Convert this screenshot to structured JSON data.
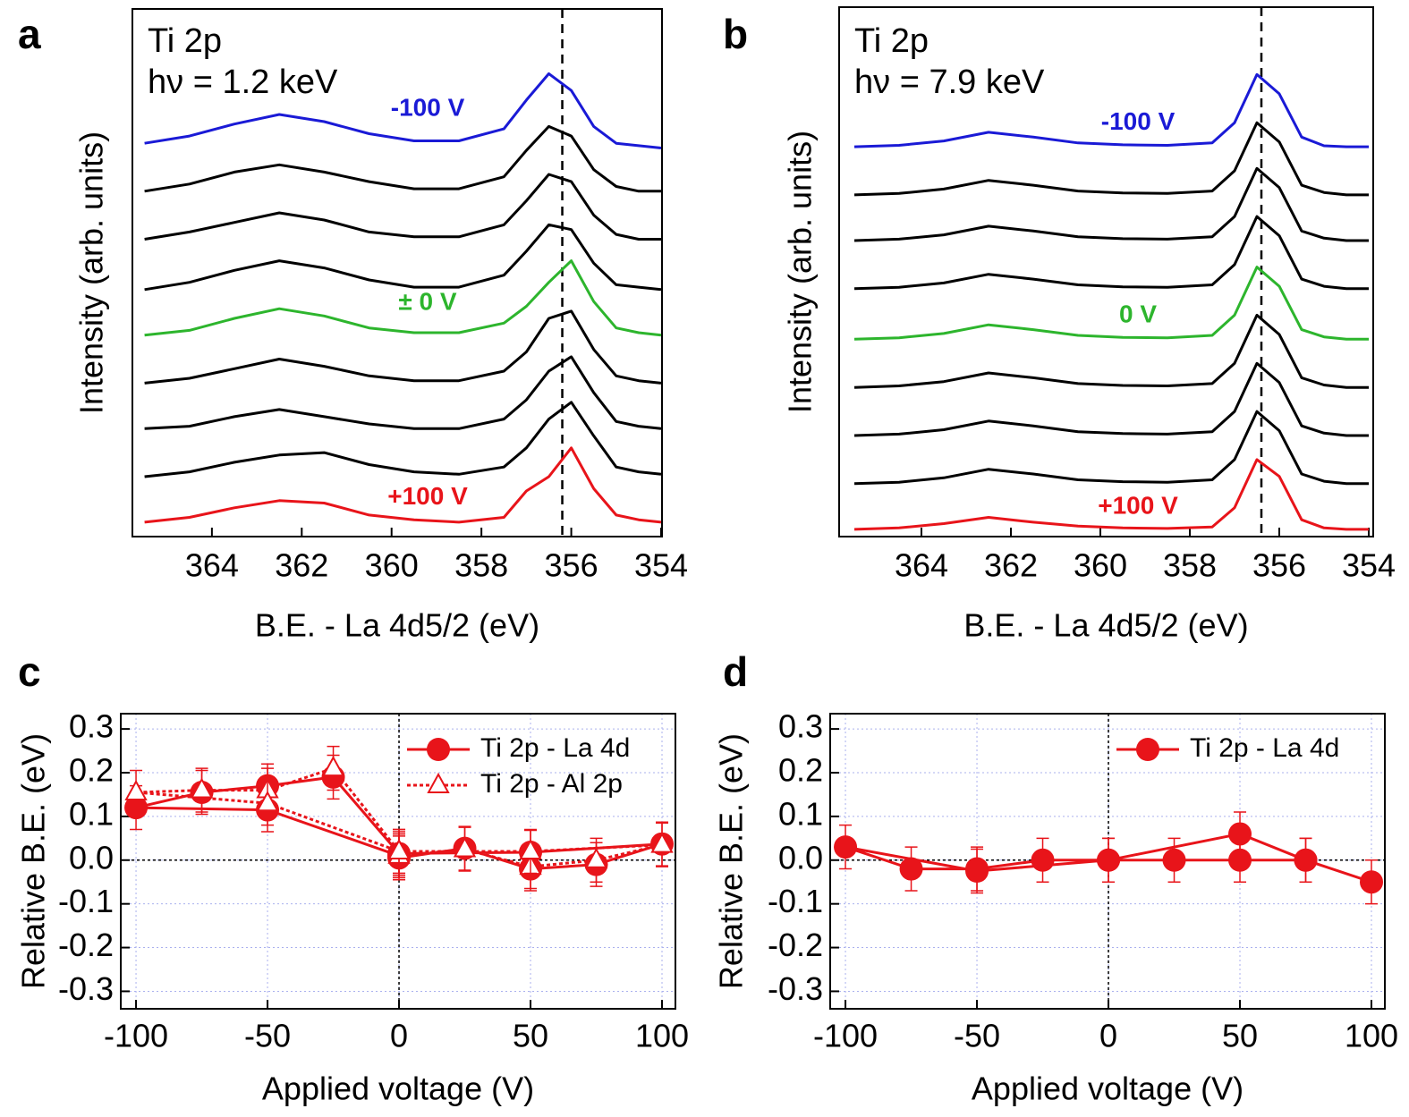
{
  "chart_data": [
    {
      "type": "line",
      "panel_label": "a",
      "annotations": [
        "Ti 2p",
        "hν = 1.2 keV"
      ],
      "xlabel": "B.E. - La 4d5/2 (eV)",
      "ylabel": "Intensity (arb. units)",
      "x": [
        365.5,
        364.5,
        363.5,
        362.5,
        361.5,
        360.5,
        359.5,
        358.5,
        357.5,
        357,
        356.5,
        356,
        355.5,
        355,
        354.5,
        354
      ],
      "xlim": [
        365.77,
        353.98
      ],
      "xticks": [
        364,
        362,
        360,
        358,
        356,
        354
      ],
      "ylim": [
        0,
        11
      ],
      "reference_x": 356.2,
      "series": [
        {
          "name": "-100 V",
          "color": "#1a1ad6",
          "values": [
            8.2,
            8.35,
            8.6,
            8.8,
            8.65,
            8.4,
            8.25,
            8.25,
            8.5,
            9.1,
            9.65,
            9.3,
            8.55,
            8.2,
            8.15,
            8.1
          ]
        },
        {
          "color": "#000000",
          "values": [
            7.2,
            7.35,
            7.6,
            7.75,
            7.6,
            7.4,
            7.25,
            7.25,
            7.5,
            8.05,
            8.55,
            8.35,
            7.65,
            7.3,
            7.2,
            7.2
          ]
        },
        {
          "color": "#000000",
          "values": [
            6.2,
            6.35,
            6.55,
            6.75,
            6.6,
            6.35,
            6.25,
            6.25,
            6.5,
            7.0,
            7.55,
            7.4,
            6.7,
            6.3,
            6.2,
            6.2
          ]
        },
        {
          "color": "#000000",
          "values": [
            5.15,
            5.3,
            5.55,
            5.75,
            5.6,
            5.35,
            5.2,
            5.2,
            5.45,
            5.95,
            6.5,
            6.4,
            5.7,
            5.25,
            5.2,
            5.15
          ]
        },
        {
          "name": "± 0 V",
          "color": "#2db52d",
          "values": [
            4.2,
            4.3,
            4.55,
            4.75,
            4.6,
            4.35,
            4.25,
            4.25,
            4.45,
            4.8,
            5.3,
            5.75,
            4.9,
            4.35,
            4.25,
            4.2
          ]
        },
        {
          "color": "#000000",
          "values": [
            3.2,
            3.3,
            3.5,
            3.7,
            3.55,
            3.35,
            3.25,
            3.25,
            3.45,
            3.85,
            4.55,
            4.7,
            3.9,
            3.35,
            3.25,
            3.2
          ]
        },
        {
          "color": "#000000",
          "values": [
            2.25,
            2.3,
            2.5,
            2.65,
            2.5,
            2.35,
            2.25,
            2.25,
            2.45,
            2.85,
            3.45,
            3.75,
            3.0,
            2.4,
            2.3,
            2.25
          ]
        },
        {
          "color": "#000000",
          "values": [
            1.25,
            1.35,
            1.55,
            1.7,
            1.75,
            1.5,
            1.35,
            1.3,
            1.45,
            1.85,
            2.45,
            2.8,
            2.1,
            1.45,
            1.35,
            1.3
          ]
        },
        {
          "name": "+100 V",
          "color": "#e8141a",
          "values": [
            0.3,
            0.4,
            0.6,
            0.75,
            0.7,
            0.45,
            0.35,
            0.3,
            0.4,
            0.95,
            1.25,
            1.85,
            1.0,
            0.45,
            0.35,
            0.3
          ]
        }
      ]
    },
    {
      "type": "line",
      "panel_label": "b",
      "annotations": [
        "Ti 2p",
        "hν = 7.9 keV"
      ],
      "xlabel": "B.E. - La 4d5/2 (eV)",
      "ylabel": "Intensity (arb. units)",
      "x": [
        365.5,
        364.5,
        363.5,
        362.5,
        361.5,
        360.5,
        359.5,
        358.5,
        357.5,
        357,
        356.5,
        356,
        355.5,
        355,
        354.5,
        354
      ],
      "xlim": [
        365.84,
        353.9
      ],
      "xticks": [
        364,
        362,
        360,
        358,
        356,
        354
      ],
      "ylim": [
        0,
        11
      ],
      "reference_x": 356.4,
      "series": [
        {
          "name": "-100 V",
          "color": "#1a1ad6",
          "values": [
            8.1,
            8.13,
            8.22,
            8.4,
            8.3,
            8.18,
            8.14,
            8.13,
            8.18,
            8.6,
            9.6,
            9.2,
            8.3,
            8.12,
            8.1,
            8.1
          ]
        },
        {
          "color": "#000000",
          "values": [
            7.1,
            7.13,
            7.22,
            7.4,
            7.3,
            7.18,
            7.14,
            7.13,
            7.18,
            7.6,
            8.6,
            8.2,
            7.3,
            7.15,
            7.1,
            7.1
          ]
        },
        {
          "color": "#000000",
          "values": [
            6.15,
            6.18,
            6.27,
            6.45,
            6.35,
            6.23,
            6.19,
            6.18,
            6.23,
            6.65,
            7.65,
            7.25,
            6.35,
            6.2,
            6.15,
            6.15
          ]
        },
        {
          "color": "#000000",
          "values": [
            5.15,
            5.18,
            5.27,
            5.45,
            5.35,
            5.23,
            5.19,
            5.18,
            5.23,
            5.65,
            6.65,
            6.25,
            5.35,
            5.2,
            5.15,
            5.15
          ]
        },
        {
          "name": "0 V",
          "color": "#2db52d",
          "values": [
            4.1,
            4.13,
            4.22,
            4.4,
            4.3,
            4.18,
            4.14,
            4.13,
            4.18,
            4.6,
            5.6,
            5.2,
            4.3,
            4.15,
            4.1,
            4.1
          ]
        },
        {
          "color": "#000000",
          "values": [
            3.1,
            3.13,
            3.22,
            3.4,
            3.3,
            3.18,
            3.14,
            3.13,
            3.18,
            3.6,
            4.6,
            4.2,
            3.3,
            3.15,
            3.1,
            3.1
          ]
        },
        {
          "color": "#000000",
          "values": [
            2.1,
            2.13,
            2.22,
            2.4,
            2.3,
            2.18,
            2.14,
            2.13,
            2.18,
            2.6,
            3.6,
            3.2,
            2.3,
            2.15,
            2.1,
            2.1
          ]
        },
        {
          "color": "#000000",
          "values": [
            1.1,
            1.13,
            1.22,
            1.4,
            1.3,
            1.18,
            1.14,
            1.13,
            1.18,
            1.6,
            2.6,
            2.2,
            1.3,
            1.15,
            1.1,
            1.1
          ]
        },
        {
          "name": "+100 V",
          "color": "#e8141a",
          "values": [
            0.15,
            0.18,
            0.27,
            0.4,
            0.3,
            0.22,
            0.18,
            0.17,
            0.2,
            0.6,
            1.6,
            1.25,
            0.35,
            0.18,
            0.15,
            0.15
          ]
        }
      ]
    },
    {
      "type": "errorbar",
      "panel_label": "c",
      "xlabel": "Applied voltage (V)",
      "ylabel": "Relative B.E. (eV)",
      "x": [
        0,
        25,
        50,
        75,
        100,
        50,
        0,
        -25,
        -50,
        -75,
        -100,
        -50,
        0
      ],
      "xlim": [
        -105.8,
        105.1
      ],
      "xticks": [
        -100,
        -50,
        0,
        50,
        100
      ],
      "ylim": [
        -0.34,
        0.335
      ],
      "yticks": [
        0.3,
        0.2,
        0.1,
        {
          "value": 0,
          "label": "0.0"
        },
        -0.1,
        -0.2,
        -0.3
      ],
      "grid": true,
      "reference_x": 0,
      "reference_y": 0,
      "legend": "upper right",
      "series": [
        {
          "name": "Ti 2p - La 4d",
          "color": "#e8141a",
          "marker": "circle",
          "linestyle": "solid",
          "values": [
            0.005,
            0.027,
            -0.02,
            -0.01,
            0.037,
            0.018,
            0.015,
            0.19,
            0.17,
            0.155,
            0.12,
            0.115,
            0.01
          ],
          "errors": [
            0.05,
            0.05,
            0.05,
            0.05,
            0.05,
            0.05,
            0.05,
            0.05,
            0.05,
            0.05,
            0.05,
            0.05,
            0.05
          ]
        },
        {
          "name": "Ti 2p - Al 2p",
          "color": "#e8141a",
          "marker": "triangle",
          "linestyle": "dotted",
          "values": [
            0.01,
            0.025,
            -0.015,
            0.0,
            0.035,
            0.02,
            0.02,
            0.21,
            0.16,
            0.16,
            0.155,
            0.13,
            0.02
          ],
          "errors": [
            0.05,
            0.05,
            0.05,
            0.05,
            0.05,
            0.05,
            0.05,
            0.05,
            0.05,
            0.05,
            0.05,
            0.05,
            0.05
          ]
        }
      ]
    },
    {
      "type": "errorbar",
      "panel_label": "d",
      "xlabel": "Applied voltage (V)",
      "ylabel": "Relative B.E. (eV)",
      "x": [
        100,
        75,
        50,
        25,
        0,
        -25,
        -50,
        -75,
        -100,
        -50,
        0,
        50,
        75
      ],
      "xlim": [
        -105.8,
        105.1
      ],
      "xticks": [
        -100,
        -50,
        0,
        50,
        100
      ],
      "ylim": [
        -0.34,
        0.335
      ],
      "yticks": [
        0.3,
        0.2,
        0.1,
        {
          "value": 0,
          "label": "0.0"
        },
        -0.1,
        -0.2,
        -0.3
      ],
      "grid": true,
      "reference_x": 0,
      "reference_y": 0,
      "legend": "upper right",
      "series": [
        {
          "name": "Ti 2p - La 4d",
          "color": "#e8141a",
          "marker": "circle",
          "linestyle": "solid",
          "values": [
            -0.05,
            0,
            0,
            0,
            0,
            0,
            -0.02,
            -0.02,
            0.03,
            -0.025,
            0,
            0.06,
            0
          ],
          "errors": [
            0.05,
            0.05,
            0.05,
            0.05,
            0.05,
            0.05,
            0.05,
            0.05,
            0.05,
            0.05,
            0.05,
            0.05,
            0.05
          ]
        }
      ]
    }
  ]
}
